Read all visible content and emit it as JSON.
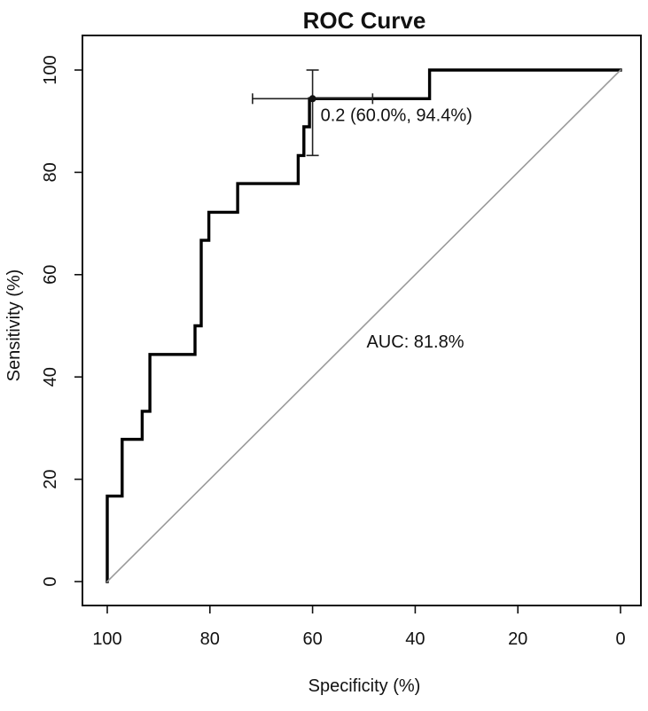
{
  "chart_data": {
    "type": "line",
    "title": "ROC Curve",
    "xlabel": "Specificity (%)",
    "ylabel": "Sensitivity (%)",
    "xlim": [
      100,
      0
    ],
    "ylim": [
      0,
      100
    ],
    "x_reversed": true,
    "xticks": [
      100,
      80,
      60,
      40,
      20,
      0
    ],
    "yticks": [
      0,
      20,
      40,
      60,
      80,
      100
    ],
    "grid": false,
    "series": [
      {
        "style": "step",
        "color": "#000000",
        "points": [
          [
            100,
            0
          ],
          [
            100,
            16.7
          ],
          [
            97.1,
            16.7
          ],
          [
            97.1,
            27.8
          ],
          [
            93.2,
            27.8
          ],
          [
            93.2,
            33.3
          ],
          [
            91.7,
            33.3
          ],
          [
            91.7,
            44.4
          ],
          [
            82.9,
            44.4
          ],
          [
            82.9,
            50
          ],
          [
            81.7,
            50
          ],
          [
            81.7,
            66.7
          ],
          [
            80.2,
            66.7
          ],
          [
            80.2,
            72.2
          ],
          [
            74.6,
            72.2
          ],
          [
            74.6,
            77.8
          ],
          [
            62.8,
            77.8
          ],
          [
            62.8,
            83.3
          ],
          [
            61.7,
            83.3
          ],
          [
            61.7,
            88.9
          ],
          [
            60.6,
            88.9
          ],
          [
            60.6,
            94.4
          ],
          [
            37.2,
            94.4
          ],
          [
            37.2,
            100
          ],
          [
            0,
            100
          ]
        ]
      },
      {
        "style": "reference-diagonal",
        "color": "#9a9a9a",
        "points": [
          [
            100,
            0
          ],
          [
            0,
            100
          ]
        ]
      }
    ],
    "threshold_point": {
      "x": 60.0,
      "y": 94.4,
      "label": "0.2 (60.0%, 94.4%)",
      "x_ci": [
        71.7,
        48.3
      ],
      "y_ci": [
        83.3,
        100
      ]
    },
    "auc_label": "AUC: 81.8%",
    "auc_label_pos": {
      "x": 50,
      "y": 47
    }
  }
}
